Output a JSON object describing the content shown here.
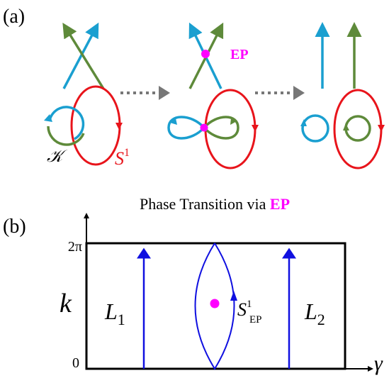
{
  "panel_a": {
    "label": "(a)",
    "ep_label": "EP",
    "knot_label": "𝒦",
    "circle_label": {
      "base": "S",
      "sup": "1"
    }
  },
  "panel_b": {
    "label": "(b)",
    "title": {
      "text": "Phase Transition via ",
      "highlight": "EP"
    },
    "y_ticks": [
      "2π",
      "0"
    ],
    "y_label": "k",
    "x_label": "γ",
    "loops": [
      {
        "base": "L",
        "sub": "1"
      },
      {
        "base": "S",
        "sup": "1",
        "sub": "EP"
      },
      {
        "base": "L",
        "sub": "2"
      }
    ]
  }
}
